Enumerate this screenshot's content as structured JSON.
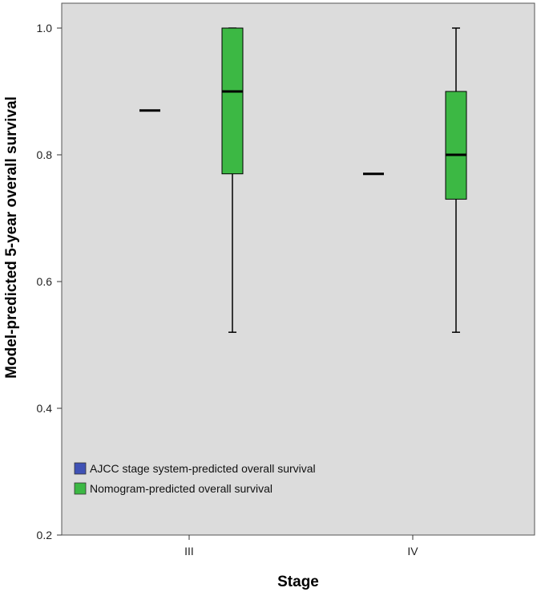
{
  "chart_data": {
    "type": "box",
    "xlabel": "Stage",
    "ylabel": "Model-predicted 5-year overall survival",
    "ylim": [
      0.2,
      1.05
    ],
    "yticks": [
      0.2,
      0.4,
      0.6,
      0.8,
      1.0
    ],
    "ytick_labels": [
      "0.2",
      "0.4",
      "0.6",
      "0.8",
      "1.0"
    ],
    "categories": [
      "III",
      "IV"
    ],
    "grid": false,
    "legend_position": "bottom-left",
    "plot_background": "#dcdcdc",
    "series": [
      {
        "name": "AJCC stage system-predicted overall survival",
        "color": "#3f51b5",
        "boxes": [
          {
            "category": "III",
            "min": 0.87,
            "q1": 0.87,
            "median": 0.87,
            "q3": 0.87,
            "max": 0.87
          },
          {
            "category": "IV",
            "min": 0.77,
            "q1": 0.77,
            "median": 0.77,
            "q3": 0.77,
            "max": 0.77
          }
        ]
      },
      {
        "name": "Nomogram-predicted overall survival",
        "color": "#3cb844",
        "boxes": [
          {
            "category": "III",
            "min": 0.52,
            "q1": 0.77,
            "median": 0.9,
            "q3": 1.0,
            "max": 1.0
          },
          {
            "category": "IV",
            "min": 0.52,
            "q1": 0.73,
            "median": 0.8,
            "q3": 0.9,
            "max": 1.0
          }
        ]
      }
    ]
  }
}
